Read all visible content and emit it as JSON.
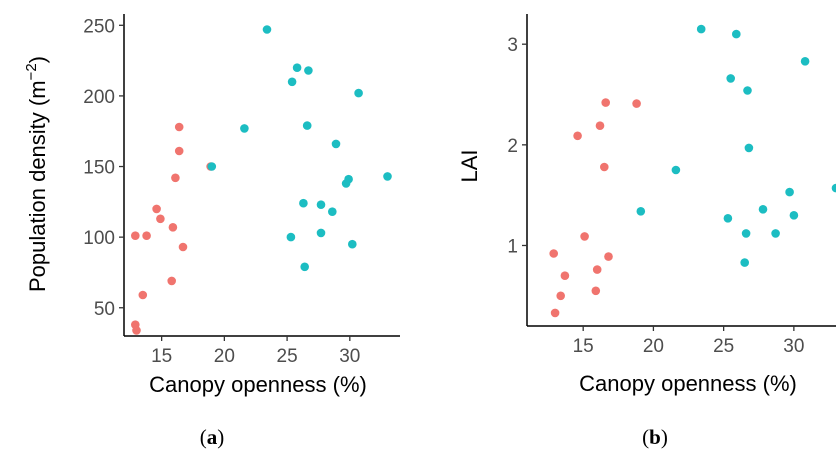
{
  "colors": {
    "group_a": "#f0746e",
    "group_b": "#1cbdc2"
  },
  "chart_data": [
    {
      "type": "scatter",
      "panel_label": {
        "open": "(",
        "letter": "a",
        "close": ")"
      },
      "xlabel": "Canopy openness (%)",
      "ylabel": {
        "main": "Population density (m",
        "sup": "−2",
        "tail": ")"
      },
      "xlim": [
        12,
        34
      ],
      "ylim": [
        30,
        258
      ],
      "xticks": [
        15,
        20,
        25,
        30
      ],
      "yticks": [
        50,
        100,
        150,
        200,
        250
      ],
      "grid": false,
      "legend": "none",
      "series": [
        {
          "color": "group_a",
          "points": [
            [
              12.9,
              101
            ],
            [
              12.9,
              38
            ],
            [
              13.0,
              34
            ],
            [
              13.5,
              59
            ],
            [
              13.8,
              101
            ],
            [
              14.6,
              120
            ],
            [
              14.9,
              113
            ],
            [
              15.9,
              107
            ],
            [
              15.8,
              69
            ],
            [
              16.1,
              142
            ],
            [
              16.4,
              178
            ],
            [
              16.4,
              161
            ],
            [
              16.7,
              93
            ],
            [
              18.9,
              150
            ]
          ]
        },
        {
          "color": "group_b",
          "points": [
            [
              19.0,
              150
            ],
            [
              21.6,
              177
            ],
            [
              23.4,
              247
            ],
            [
              25.3,
              100
            ],
            [
              25.4,
              210
            ],
            [
              25.8,
              220
            ],
            [
              26.3,
              124
            ],
            [
              26.4,
              79
            ],
            [
              26.6,
              179
            ],
            [
              26.7,
              218
            ],
            [
              27.7,
              103
            ],
            [
              27.7,
              123
            ],
            [
              28.6,
              118
            ],
            [
              28.9,
              166
            ],
            [
              29.7,
              138
            ],
            [
              29.9,
              141
            ],
            [
              30.2,
              95
            ],
            [
              30.7,
              202
            ],
            [
              33.0,
              143
            ]
          ]
        }
      ]
    },
    {
      "type": "scatter",
      "panel_label": {
        "open": "(",
        "letter": "b",
        "close": ")"
      },
      "xlabel": "Canopy openness (%)",
      "ylabel": {
        "main": "LAI",
        "sup": "",
        "tail": ""
      },
      "xlim": [
        11,
        33
      ],
      "ylim": [
        0.2,
        3.3
      ],
      "xticks": [
        15,
        20,
        25,
        30
      ],
      "yticks": [
        1,
        2,
        3
      ],
      "grid": false,
      "legend": "none",
      "series": [
        {
          "color": "group_a",
          "points": [
            [
              12.9,
              0.92
            ],
            [
              13.0,
              0.33
            ],
            [
              13.4,
              0.5
            ],
            [
              13.7,
              0.7
            ],
            [
              14.6,
              2.09
            ],
            [
              15.1,
              1.09
            ],
            [
              15.9,
              0.55
            ],
            [
              16.0,
              0.76
            ],
            [
              16.2,
              2.19
            ],
            [
              16.5,
              1.78
            ],
            [
              16.6,
              2.42
            ],
            [
              16.8,
              0.89
            ],
            [
              18.8,
              2.41
            ]
          ]
        },
        {
          "color": "group_b",
          "points": [
            [
              19.1,
              1.34
            ],
            [
              21.6,
              1.75
            ],
            [
              23.4,
              3.15
            ],
            [
              25.3,
              1.27
            ],
            [
              25.5,
              2.66
            ],
            [
              25.9,
              3.1
            ],
            [
              26.5,
              0.83
            ],
            [
              26.6,
              1.12
            ],
            [
              26.7,
              2.54
            ],
            [
              26.8,
              1.97
            ],
            [
              27.8,
              1.36
            ],
            [
              28.7,
              1.12
            ],
            [
              29.7,
              1.53
            ],
            [
              30.0,
              1.3
            ],
            [
              30.8,
              2.83
            ],
            [
              33.0,
              1.57
            ]
          ]
        }
      ]
    }
  ]
}
